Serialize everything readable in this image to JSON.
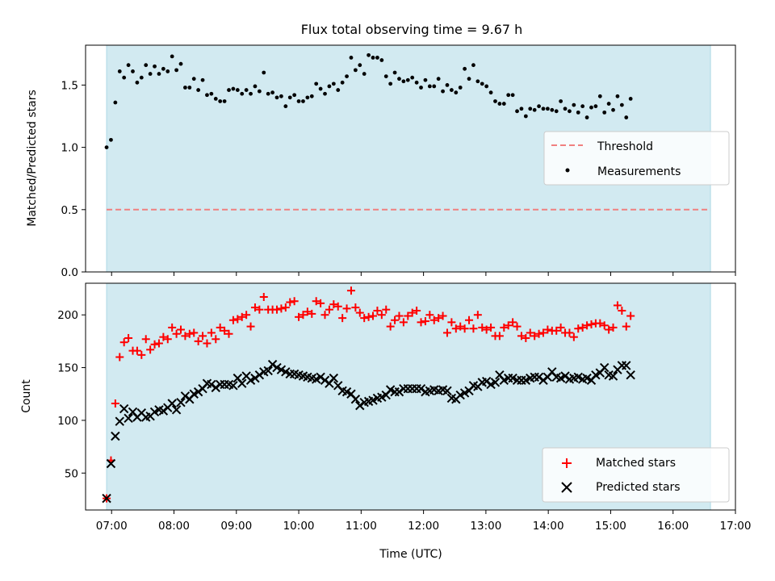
{
  "chart_data": {
    "title": "Flux total observing time = 9.67 h",
    "xlabel": "Time (UTC)",
    "x_ticks": [
      "07:00",
      "08:00",
      "09:00",
      "10:00",
      "11:00",
      "12:00",
      "13:00",
      "14:00",
      "15:00",
      "16:00",
      "17:00"
    ],
    "xlim_hours": [
      6.583,
      17.0
    ],
    "shaded_span_hours": [
      6.92,
      16.6
    ],
    "colors": {
      "shade": "#add8e6",
      "threshold": "#f08080",
      "measurements": "#000000",
      "matched": "#ff0000",
      "predicted": "#000000"
    },
    "panels": [
      {
        "type": "scatter",
        "ylabel": "Matched/Predicted stars",
        "ylim": [
          0,
          1.82
        ],
        "y_ticks": [
          "0.0",
          "0.5",
          "1.0",
          "1.5"
        ],
        "legend": {
          "placement": "center-right",
          "entries": [
            "Threshold",
            "Measurements"
          ]
        },
        "threshold": 0.5,
        "x_start_hours": 6.92,
        "x_step_hours": 0.07,
        "series": [
          {
            "name": "Measurements",
            "marker": "dot",
            "y": [
              1.0,
              1.06,
              1.36,
              1.61,
              1.56,
              1.66,
              1.61,
              1.52,
              1.56,
              1.66,
              1.59,
              1.65,
              1.59,
              1.63,
              1.61,
              1.73,
              1.62,
              1.67,
              1.48,
              1.48,
              1.55,
              1.46,
              1.54,
              1.42,
              1.43,
              1.39,
              1.37,
              1.37,
              1.46,
              1.47,
              1.46,
              1.43,
              1.46,
              1.43,
              1.49,
              1.45,
              1.6,
              1.43,
              1.44,
              1.4,
              1.41,
              1.33,
              1.4,
              1.42,
              1.37,
              1.37,
              1.4,
              1.41,
              1.51,
              1.47,
              1.43,
              1.49,
              1.51,
              1.46,
              1.52,
              1.57,
              1.72,
              1.62,
              1.66,
              1.59,
              1.74,
              1.72,
              1.72,
              1.7,
              1.57,
              1.51,
              1.6,
              1.55,
              1.53,
              1.54,
              1.56,
              1.52,
              1.48,
              1.54,
              1.49,
              1.49,
              1.55,
              1.45,
              1.5,
              1.46,
              1.44,
              1.48,
              1.63,
              1.55,
              1.66,
              1.53,
              1.51,
              1.49,
              1.44,
              1.37,
              1.35,
              1.35,
              1.42,
              1.42,
              1.29,
              1.31,
              1.25,
              1.31,
              1.3,
              1.33,
              1.31,
              1.31,
              1.3,
              1.29,
              1.37,
              1.31,
              1.29,
              1.34,
              1.28,
              1.33,
              1.24,
              1.32,
              1.33,
              1.41,
              1.28,
              1.35,
              1.3,
              1.41,
              1.34,
              1.24,
              1.39
            ]
          }
        ]
      },
      {
        "type": "scatter",
        "ylabel": "Count",
        "ylim": [
          15,
          230
        ],
        "y_ticks": [
          "50",
          "100",
          "150",
          "200"
        ],
        "legend": {
          "placement": "lower-right",
          "entries": [
            "Matched stars",
            "Predicted stars"
          ]
        },
        "x_start_hours": 6.92,
        "x_step_hours": 0.07,
        "series": [
          {
            "name": "Matched stars",
            "marker": "plus",
            "y": [
              26,
              62,
              116,
              160,
              174,
              178,
              166,
              166,
              162,
              177,
              167,
              172,
              173,
              179,
              177,
              188,
              182,
              186,
              180,
              182,
              183,
              175,
              180,
              173,
              183,
              177,
              188,
              185,
              182,
              195,
              196,
              198,
              200,
              189,
              207,
              205,
              217,
              205,
              205,
              205,
              206,
              207,
              212,
              213,
              198,
              200,
              203,
              201,
              213,
              211,
              200,
              205,
              210,
              208,
              197,
              206,
              223,
              207,
              202,
              197,
              198,
              199,
              204,
              200,
              205,
              189,
              195,
              199,
              193,
              199,
              202,
              204,
              193,
              194,
              200,
              195,
              197,
              199,
              183,
              193,
              187,
              189,
              187,
              195,
              187,
              200,
              188,
              186,
              188,
              180,
              180,
              188,
              190,
              193,
              189,
              180,
              178,
              183,
              180,
              182,
              183,
              186,
              185,
              185,
              188,
              183,
              183,
              179,
              187,
              188,
              190,
              191,
              192,
              192,
              190,
              186,
              188,
              209,
              204,
              189,
              199
            ]
          },
          {
            "name": "Predicted stars",
            "marker": "x",
            "y": [
              26,
              59,
              85,
              99,
              111,
              102,
              108,
              103,
              107,
              103,
              104,
              108,
              110,
              109,
              112,
              116,
              110,
              117,
              123,
              120,
              125,
              127,
              130,
              135,
              134,
              131,
              134,
              134,
              134,
              133,
              140,
              135,
              142,
              138,
              140,
              143,
              146,
              147,
              153,
              150,
              148,
              146,
              144,
              144,
              143,
              142,
              141,
              140,
              139,
              141,
              138,
              135,
              140,
              133,
              128,
              127,
              125,
              120,
              114,
              117,
              118,
              119,
              121,
              122,
              124,
              129,
              127,
              127,
              130,
              130,
              130,
              130,
              130,
              127,
              128,
              129,
              128,
              129,
              128,
              121,
              120,
              124,
              126,
              128,
              133,
              132,
              136,
              137,
              134,
              136,
              143,
              138,
              140,
              140,
              138,
              138,
              138,
              140,
              141,
              141,
              138,
              141,
              146,
              141,
              140,
              142,
              139,
              140,
              141,
              139,
              140,
              138,
              143,
              145,
              150,
              143,
              142,
              148,
              152,
              152,
              143
            ]
          }
        ]
      }
    ]
  }
}
